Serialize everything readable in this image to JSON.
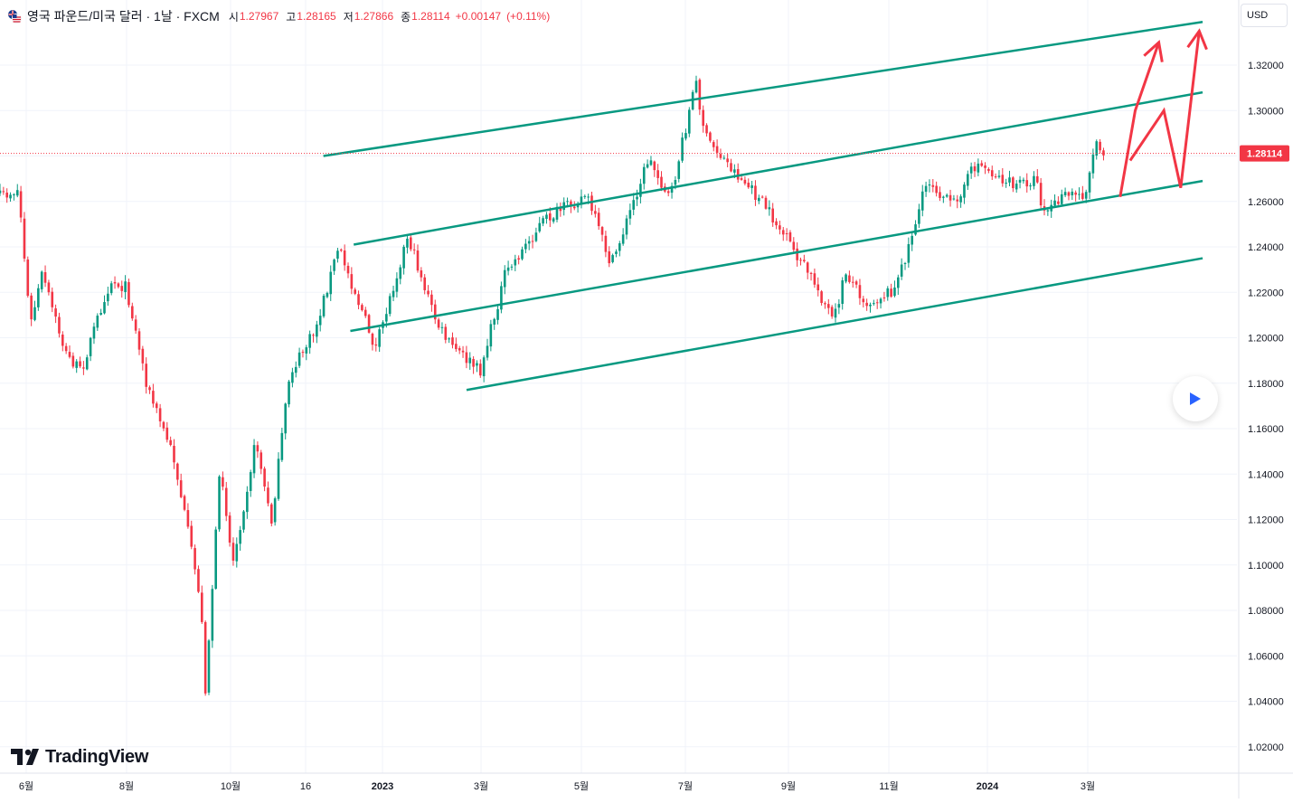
{
  "header": {
    "title": "영국 파운드/미국 달러 · 1날 · FXCM",
    "open_label": "시",
    "open": "1.27967",
    "high_label": "고",
    "high": "1.28165",
    "low_label": "저",
    "low": "1.27866",
    "close_label": "종",
    "close": "1.28114",
    "change": "+0.00147",
    "change_pct": "(+0.11%)"
  },
  "currency": "USD",
  "logo_text": "TradingView",
  "chart_data": {
    "type": "candlestick",
    "symbol": "GBPUSD",
    "yticks": [
      "1.32000",
      "1.30000",
      "1.28000",
      "1.26000",
      "1.24000",
      "1.22000",
      "1.20000",
      "1.18000",
      "1.16000",
      "1.14000",
      "1.12000",
      "1.10000",
      "1.08000",
      "1.06000",
      "1.04000",
      "1.02000"
    ],
    "ylim": [
      1.01,
      1.34
    ],
    "last_price": "1.28114",
    "xticks": [
      "6월",
      "8월",
      "10월",
      "16",
      "2023",
      "3월",
      "5월",
      "7월",
      "9월",
      "11월",
      "2024",
      "3월"
    ],
    "colors": {
      "up": "#089981",
      "down": "#f23645",
      "channel": "#089981",
      "projection": "#f23645",
      "price_line": "#f23645"
    },
    "path": [
      {
        "d": "2022-05-27",
        "v": 1.262
      },
      {
        "d": "2022-06-07",
        "v": 1.265
      },
      {
        "d": "2022-06-14",
        "v": 1.205
      },
      {
        "d": "2022-06-21",
        "v": 1.228
      },
      {
        "d": "2022-07-05",
        "v": 1.193
      },
      {
        "d": "2022-07-14",
        "v": 1.185
      },
      {
        "d": "2022-07-28",
        "v": 1.218
      },
      {
        "d": "2022-08-01",
        "v": 1.225
      },
      {
        "d": "2022-08-10",
        "v": 1.222
      },
      {
        "d": "2022-08-23",
        "v": 1.177
      },
      {
        "d": "2022-09-07",
        "v": 1.148
      },
      {
        "d": "2022-09-23",
        "v": 1.085
      },
      {
        "d": "2022-09-26",
        "v": 1.045
      },
      {
        "d": "2022-10-05",
        "v": 1.145
      },
      {
        "d": "2022-10-12",
        "v": 1.1
      },
      {
        "d": "2022-10-26",
        "v": 1.155
      },
      {
        "d": "2022-11-04",
        "v": 1.118
      },
      {
        "d": "2022-11-15",
        "v": 1.184
      },
      {
        "d": "2022-11-30",
        "v": 1.203
      },
      {
        "d": "2022-12-14",
        "v": 1.24
      },
      {
        "d": "2023-01-05",
        "v": 1.195
      },
      {
        "d": "2023-01-24",
        "v": 1.245
      },
      {
        "d": "2023-02-10",
        "v": 1.207
      },
      {
        "d": "2023-02-17",
        "v": 1.198
      },
      {
        "d": "2023-03-08",
        "v": 1.185
      },
      {
        "d": "2023-03-23",
        "v": 1.228
      },
      {
        "d": "2023-04-14",
        "v": 1.251
      },
      {
        "d": "2023-05-10",
        "v": 1.263
      },
      {
        "d": "2023-05-25",
        "v": 1.232
      },
      {
        "d": "2023-06-16",
        "v": 1.279
      },
      {
        "d": "2023-06-29",
        "v": 1.261
      },
      {
        "d": "2023-07-14",
        "v": 1.313
      },
      {
        "d": "2023-07-20",
        "v": 1.288
      },
      {
        "d": "2023-08-04",
        "v": 1.275
      },
      {
        "d": "2023-08-24",
        "v": 1.258
      },
      {
        "d": "2023-09-22",
        "v": 1.225
      },
      {
        "d": "2023-10-04",
        "v": 1.207
      },
      {
        "d": "2023-10-11",
        "v": 1.229
      },
      {
        "d": "2023-10-24",
        "v": 1.215
      },
      {
        "d": "2023-11-10",
        "v": 1.222
      },
      {
        "d": "2023-11-29",
        "v": 1.27
      },
      {
        "d": "2023-12-13",
        "v": 1.258
      },
      {
        "d": "2023-12-28",
        "v": 1.277
      },
      {
        "d": "2024-01-18",
        "v": 1.267
      },
      {
        "d": "2024-02-02",
        "v": 1.27
      },
      {
        "d": "2024-02-05",
        "v": 1.255
      },
      {
        "d": "2024-02-20",
        "v": 1.263
      },
      {
        "d": "2024-03-01",
        "v": 1.263
      },
      {
        "d": "2024-03-08",
        "v": 1.287
      },
      {
        "d": "2024-03-13",
        "v": 1.281
      }
    ],
    "channel_lines": [
      {
        "start": [
          "2022-12-05",
          1.28
        ],
        "end": [
          "2024-05-10",
          1.339
        ]
      },
      {
        "start": [
          "2022-12-23",
          1.241
        ],
        "end": [
          "2024-05-10",
          1.308
        ]
      },
      {
        "start": [
          "2022-12-21",
          1.203
        ],
        "end": [
          "2024-05-10",
          1.269
        ]
      },
      {
        "start": [
          "2023-02-28",
          1.177
        ],
        "end": [
          "2024-05-10",
          1.235
        ]
      }
    ],
    "projection_paths": [
      [
        [
          "2024-03-22",
          1.262
        ],
        [
          "2024-03-31",
          1.3
        ],
        [
          "2024-04-14",
          1.33
        ]
      ],
      [
        [
          "2024-03-28",
          1.278
        ],
        [
          "2024-04-17",
          1.3
        ],
        [
          "2024-04-27",
          1.266
        ],
        [
          "2024-05-08",
          1.335
        ]
      ]
    ]
  }
}
